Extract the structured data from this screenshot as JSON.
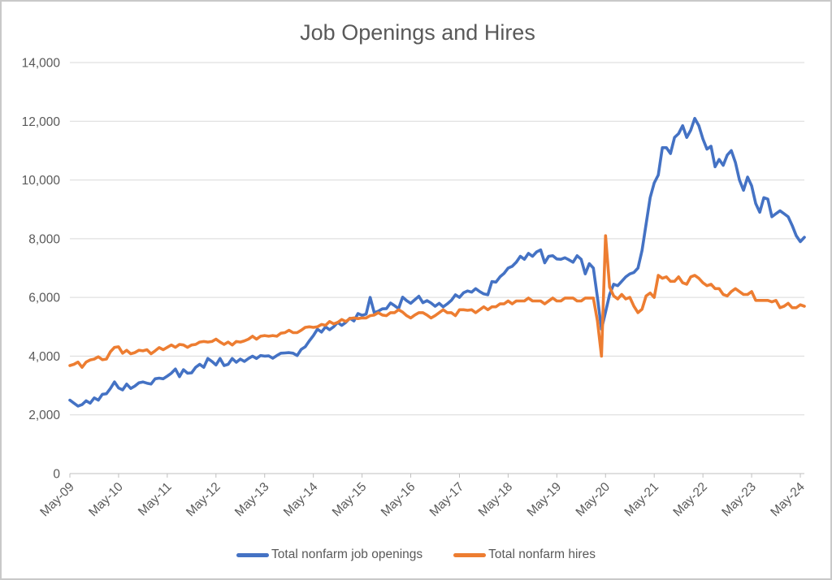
{
  "chart_data": {
    "type": "line",
    "title": "Job Openings and Hires",
    "xlabel": "",
    "ylabel": "",
    "ylim": [
      0,
      14000
    ],
    "y_tick_step": 2000,
    "y_tick_labels": [
      "0",
      "2,000",
      "4,000",
      "6,000",
      "8,000",
      "10,000",
      "12,000",
      "14,000"
    ],
    "x_tick_labels": [
      "May-09",
      "May-10",
      "May-11",
      "May-12",
      "May-13",
      "May-14",
      "May-15",
      "May-16",
      "May-17",
      "May-18",
      "May-19",
      "May-20",
      "May-21",
      "May-22",
      "May-23",
      "May-24"
    ],
    "x_tick_interval_months": 12,
    "x_start_month": "May-09",
    "x_end_month": "Jun-24",
    "grid": "horizontal",
    "legend_position": "bottom-center",
    "series": [
      {
        "name": "Total nonfarm job openings",
        "color": "#4472C4",
        "values": [
          2500,
          2400,
          2300,
          2350,
          2480,
          2400,
          2580,
          2500,
          2700,
          2720,
          2900,
          3120,
          2920,
          2850,
          3050,
          2900,
          2980,
          3090,
          3120,
          3080,
          3050,
          3230,
          3250,
          3230,
          3320,
          3420,
          3560,
          3300,
          3540,
          3420,
          3430,
          3620,
          3720,
          3620,
          3920,
          3820,
          3700,
          3920,
          3680,
          3720,
          3920,
          3790,
          3900,
          3820,
          3920,
          4000,
          3920,
          4020,
          4000,
          4010,
          3930,
          4020,
          4100,
          4110,
          4120,
          4100,
          4020,
          4230,
          4320,
          4520,
          4700,
          4920,
          4820,
          5000,
          4900,
          5000,
          5150,
          5050,
          5150,
          5290,
          5200,
          5450,
          5390,
          5430,
          6000,
          5480,
          5530,
          5610,
          5620,
          5810,
          5720,
          5620,
          6010,
          5890,
          5800,
          5920,
          6040,
          5820,
          5890,
          5810,
          5700,
          5800,
          5680,
          5780,
          5900,
          6090,
          6000,
          6160,
          6220,
          6180,
          6300,
          6200,
          6120,
          6090,
          6540,
          6520,
          6700,
          6820,
          7000,
          7060,
          7200,
          7400,
          7300,
          7500,
          7400,
          7550,
          7620,
          7180,
          7400,
          7420,
          7310,
          7300,
          7350,
          7280,
          7200,
          7420,
          7300,
          6800,
          7150,
          7000,
          6000,
          4920,
          5500,
          6100,
          6450,
          6400,
          6550,
          6700,
          6800,
          6850,
          7000,
          7600,
          8500,
          9400,
          9900,
          10170,
          11100,
          11100,
          10900,
          11450,
          11580,
          11850,
          11450,
          11700,
          12100,
          11850,
          11400,
          11050,
          11150,
          10450,
          10700,
          10500,
          10850,
          11000,
          10600,
          10000,
          9650,
          10100,
          9800,
          9200,
          8900,
          9400,
          9350,
          8750,
          8850,
          8950,
          8850,
          8750,
          8450,
          8100,
          7900,
          8050
        ]
      },
      {
        "name": "Total nonfarm hires",
        "color": "#ED7D31",
        "values": [
          3680,
          3720,
          3800,
          3620,
          3800,
          3870,
          3900,
          3980,
          3880,
          3900,
          4150,
          4300,
          4320,
          4100,
          4200,
          4080,
          4120,
          4200,
          4180,
          4220,
          4080,
          4180,
          4290,
          4220,
          4300,
          4380,
          4300,
          4400,
          4380,
          4300,
          4380,
          4400,
          4480,
          4500,
          4480,
          4500,
          4580,
          4480,
          4400,
          4480,
          4380,
          4500,
          4480,
          4520,
          4580,
          4680,
          4580,
          4680,
          4700,
          4680,
          4700,
          4680,
          4780,
          4800,
          4880,
          4800,
          4800,
          4880,
          4980,
          5000,
          4980,
          5000,
          5080,
          5050,
          5180,
          5100,
          5150,
          5250,
          5180,
          5280,
          5300,
          5280,
          5300,
          5300,
          5380,
          5400,
          5480,
          5400,
          5380,
          5480,
          5480,
          5580,
          5500,
          5380,
          5300,
          5400,
          5480,
          5480,
          5400,
          5300,
          5380,
          5480,
          5580,
          5480,
          5480,
          5380,
          5580,
          5580,
          5560,
          5580,
          5480,
          5580,
          5680,
          5580,
          5680,
          5680,
          5780,
          5780,
          5880,
          5780,
          5880,
          5880,
          5880,
          5980,
          5880,
          5880,
          5880,
          5780,
          5880,
          5980,
          5880,
          5880,
          5980,
          5980,
          5980,
          5880,
          5880,
          5980,
          5980,
          5980,
          5200,
          4000,
          8100,
          6350,
          6050,
          5950,
          6100,
          5950,
          6000,
          5700,
          5480,
          5600,
          6050,
          6150,
          6000,
          6750,
          6650,
          6700,
          6550,
          6550,
          6700,
          6500,
          6450,
          6700,
          6750,
          6650,
          6500,
          6400,
          6450,
          6300,
          6300,
          6100,
          6050,
          6200,
          6300,
          6200,
          6100,
          6100,
          6200,
          5900,
          5900,
          5900,
          5900,
          5850,
          5900,
          5650,
          5700,
          5800,
          5650,
          5650,
          5750,
          5700
        ]
      }
    ]
  },
  "styles": {
    "background": "#FFFFFF",
    "border": "#C9C9C9",
    "title_text": "#595959",
    "axis_text": "#595959",
    "gridline": "#D9D9D9",
    "axis_line": "#BFBFBF"
  }
}
